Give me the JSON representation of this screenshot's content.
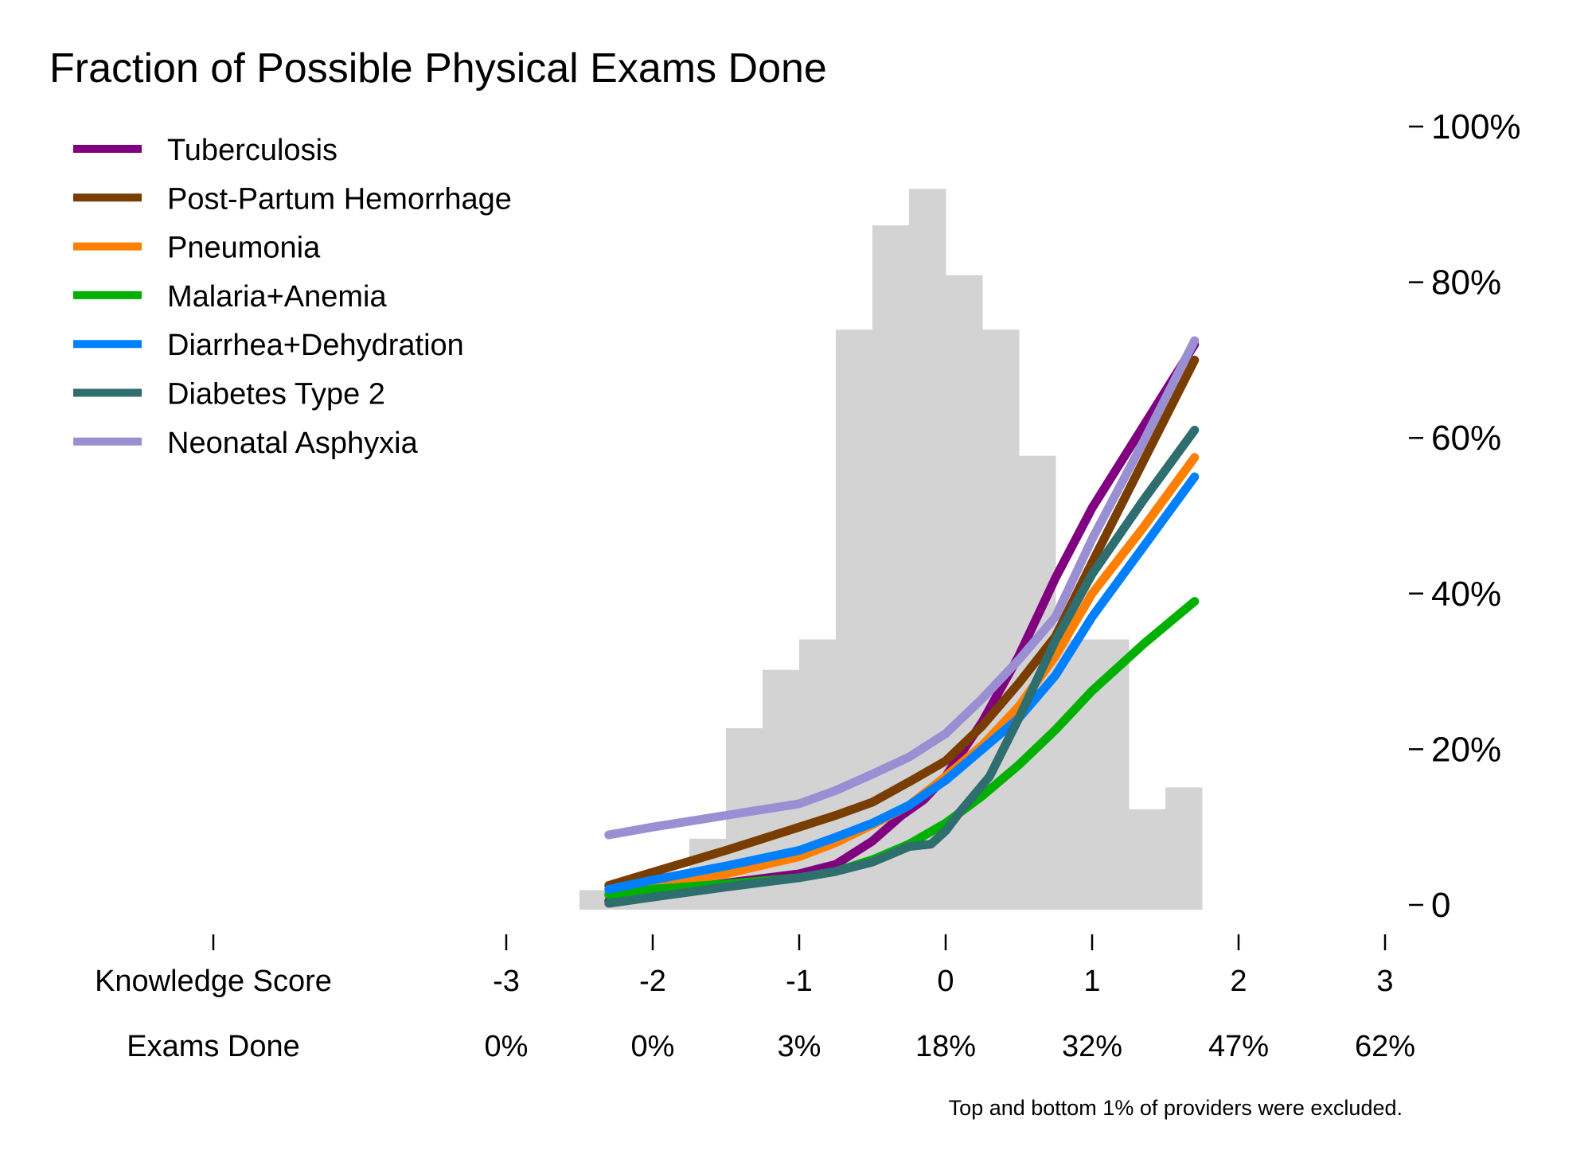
{
  "chart_data": {
    "type": "line",
    "title": "Fraction of Possible Physical Exams Done",
    "note": "Top and bottom 1% of providers were excluded.",
    "x_axis": {
      "label": "Knowledge Score",
      "ticks": [
        -3,
        -2,
        -1,
        0,
        1,
        2,
        3
      ],
      "secondary_label": "Exams Done",
      "secondary_ticks": [
        "0%",
        "0%",
        "3%",
        "18%",
        "32%",
        "47%",
        "62%"
      ],
      "xlim": [
        -3.5,
        3
      ]
    },
    "y_axis": {
      "position": "right",
      "ylim": [
        0,
        100
      ],
      "ticks": [
        0,
        20,
        40,
        60,
        80,
        100
      ],
      "tick_labels": [
        "0",
        "20%",
        "40%",
        "60%",
        "80%",
        "100%"
      ]
    },
    "grid": false,
    "legend": {
      "placement": "top-left"
    },
    "histogram": {
      "color": "#d3d3d3",
      "bin_width": 0.25,
      "bins": [
        {
          "x0": -2.5,
          "height": 1.9
        },
        {
          "x0": -2.25,
          "height": 1.0
        },
        {
          "x0": -2.0,
          "height": 3.0
        },
        {
          "x0": -1.75,
          "height": 8.5
        },
        {
          "x0": -1.5,
          "height": 22.7
        },
        {
          "x0": -1.25,
          "height": 30.2
        },
        {
          "x0": -1.0,
          "height": 34.1
        },
        {
          "x0": -0.75,
          "height": 73.9
        },
        {
          "x0": -0.5,
          "height": 87.3
        },
        {
          "x0": -0.25,
          "height": 92.0
        },
        {
          "x0": 0.0,
          "height": 80.9
        },
        {
          "x0": 0.25,
          "height": 73.9
        },
        {
          "x0": 0.5,
          "height": 57.7
        },
        {
          "x0": 0.75,
          "height": 34.1
        },
        {
          "x0": 1.0,
          "height": 34.1
        },
        {
          "x0": 1.25,
          "height": 12.3
        },
        {
          "x0": 1.5,
          "height": 15.1
        }
      ]
    },
    "series": [
      {
        "name": "Tuberculosis",
        "color": "#800080",
        "x": [
          -2.3,
          -2.0,
          -1.5,
          -1.0,
          -0.75,
          -0.5,
          -0.3,
          -0.15,
          0.0,
          0.25,
          0.5,
          0.75,
          1.0,
          1.35,
          1.7
        ],
        "y": [
          0.5,
          1.5,
          2.8,
          4.0,
          5.2,
          8.2,
          11.5,
          13.5,
          16.5,
          23.5,
          32.0,
          42.0,
          51.0,
          61.5,
          72.0
        ]
      },
      {
        "name": "Post-Partum Hemorrhage",
        "color": "#7a3d00",
        "x": [
          -2.3,
          -2.0,
          -1.5,
          -1.0,
          -0.75,
          -0.5,
          -0.25,
          0.0,
          0.25,
          0.5,
          0.75,
          1.0,
          1.35,
          1.7
        ],
        "y": [
          2.5,
          4.2,
          7.0,
          10.0,
          11.5,
          13.2,
          15.8,
          18.5,
          23.0,
          28.5,
          34.5,
          44.0,
          57.0,
          70.0
        ]
      },
      {
        "name": "Pneumonia",
        "color": "#ff8000",
        "x": [
          -2.3,
          -2.0,
          -1.5,
          -1.0,
          -0.75,
          -0.5,
          -0.25,
          0.0,
          0.25,
          0.5,
          0.75,
          1.0,
          1.35,
          1.7
        ],
        "y": [
          1.5,
          2.5,
          4.0,
          6.2,
          8.0,
          10.3,
          12.8,
          16.5,
          20.5,
          25.5,
          32.0,
          40.0,
          48.5,
          57.5
        ]
      },
      {
        "name": "Malaria+Anemia",
        "color": "#00b000",
        "x": [
          -2.3,
          -2.0,
          -1.5,
          -1.0,
          -0.75,
          -0.5,
          -0.25,
          0.0,
          0.25,
          0.5,
          0.75,
          1.0,
          1.35,
          1.7
        ],
        "y": [
          1.3,
          2.0,
          2.7,
          3.5,
          4.3,
          5.8,
          7.8,
          10.5,
          14.0,
          18.0,
          22.5,
          27.5,
          33.5,
          39.0
        ]
      },
      {
        "name": "Diarrhea+Dehydration",
        "color": "#0080ff",
        "x": [
          -2.3,
          -2.0,
          -1.5,
          -1.0,
          -0.75,
          -0.5,
          -0.25,
          0.0,
          0.25,
          0.5,
          0.75,
          1.0,
          1.35,
          1.7
        ],
        "y": [
          2.0,
          3.2,
          5.0,
          7.0,
          8.7,
          10.5,
          12.8,
          16.0,
          20.0,
          24.0,
          29.5,
          37.0,
          46.0,
          55.0
        ]
      },
      {
        "name": "Diabetes Type 2",
        "color": "#2e6e6e",
        "x": [
          -2.3,
          -2.0,
          -1.5,
          -1.0,
          -0.75,
          -0.5,
          -0.25,
          -0.1,
          0.0,
          0.1,
          0.3,
          0.5,
          0.75,
          1.0,
          1.35,
          1.7
        ],
        "y": [
          0.2,
          1.0,
          2.3,
          3.5,
          4.3,
          5.5,
          7.5,
          7.8,
          9.5,
          12.0,
          16.5,
          24.0,
          34.0,
          42.5,
          52.0,
          61.0
        ]
      },
      {
        "name": "Neonatal Asphyxia",
        "color": "#9b8fd4",
        "x": [
          -2.3,
          -2.0,
          -1.5,
          -1.0,
          -0.75,
          -0.5,
          -0.25,
          0.0,
          0.25,
          0.5,
          0.75,
          1.0,
          1.35,
          1.7
        ],
        "y": [
          9.0,
          10.0,
          11.5,
          13.0,
          14.7,
          16.8,
          19.0,
          22.0,
          26.5,
          31.5,
          37.0,
          47.0,
          59.5,
          72.5
        ]
      }
    ]
  }
}
